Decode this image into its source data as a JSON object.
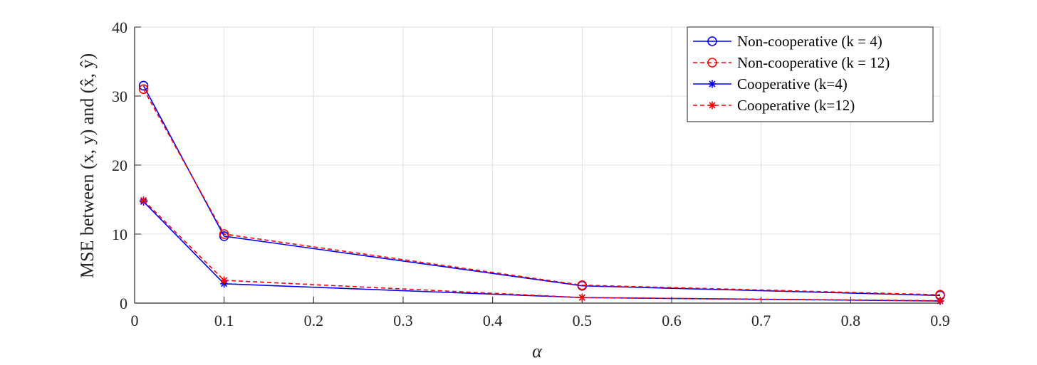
{
  "chart_data": {
    "type": "line",
    "xlabel": "α",
    "ylabel": "MSE between (x, y) and (x̂, ŷ)",
    "xlim": [
      0,
      0.9
    ],
    "ylim": [
      0,
      40
    ],
    "xticks": [
      "0",
      "0.1",
      "0.2",
      "0.3",
      "0.4",
      "0.5",
      "0.6",
      "0.7",
      "0.8",
      "0.9"
    ],
    "yticks": [
      "0",
      "10",
      "20",
      "30",
      "40"
    ],
    "grid": true,
    "legend_position": "top-right",
    "x": [
      0.01,
      0.1,
      0.5,
      0.9
    ],
    "series": [
      {
        "name": "Non-cooperative (k = 4)",
        "values": [
          31.5,
          9.7,
          2.5,
          1.1
        ],
        "color": "#0000ff",
        "dash": "solid",
        "marker": "circle"
      },
      {
        "name": "Non-cooperative (k = 12)",
        "values": [
          31.0,
          10.0,
          2.6,
          1.2
        ],
        "color": "#ff0000",
        "dash": "dashed",
        "marker": "circle"
      },
      {
        "name": "Cooperative (k=4)",
        "values": [
          14.7,
          2.8,
          0.8,
          0.3
        ],
        "color": "#0000ff",
        "dash": "solid",
        "marker": "asterisk"
      },
      {
        "name": "Cooperative (k=12)",
        "values": [
          14.9,
          3.3,
          0.8,
          0.35
        ],
        "color": "#ff0000",
        "dash": "dashed",
        "marker": "asterisk"
      }
    ]
  }
}
